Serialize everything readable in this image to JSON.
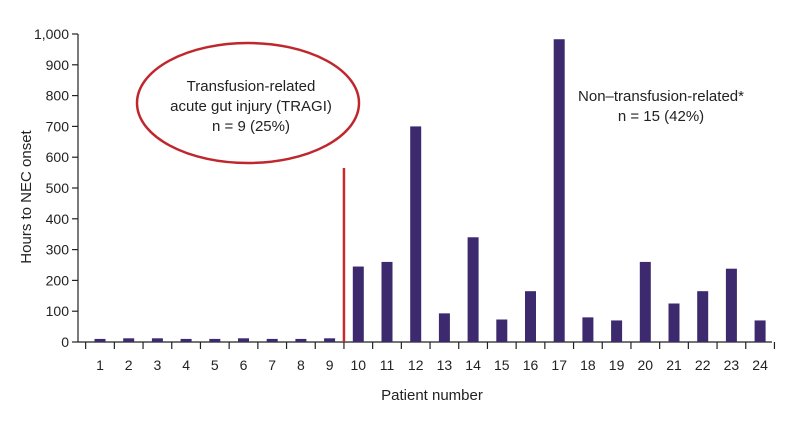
{
  "chart_data": {
    "type": "bar",
    "title": "",
    "xlabel": "Patient number",
    "ylabel": "Hours to NEC onset",
    "ylim": [
      0,
      1000
    ],
    "yticks": [
      0,
      100,
      200,
      300,
      400,
      500,
      600,
      700,
      800,
      900,
      1000
    ],
    "ytick_labels": [
      "0",
      "100",
      "200",
      "300",
      "400",
      "500",
      "600",
      "700",
      "800",
      "900",
      "1,000"
    ],
    "categories": [
      "1",
      "2",
      "3",
      "4",
      "5",
      "6",
      "7",
      "8",
      "9",
      "10",
      "11",
      "12",
      "13",
      "14",
      "15",
      "16",
      "17",
      "18",
      "19",
      "20",
      "21",
      "22",
      "23",
      "24"
    ],
    "values": [
      10,
      12,
      12,
      10,
      10,
      12,
      10,
      10,
      12,
      245,
      260,
      700,
      93,
      340,
      73,
      165,
      983,
      80,
      70,
      260,
      125,
      165,
      238,
      70
    ],
    "grid": false,
    "legend": "none",
    "bar_color": "#3d2a6e",
    "divider": {
      "after_category": "9",
      "color": "#cc2a2a",
      "top_value": 565
    },
    "annotations": {
      "tragi_line1": "Transfusion-related",
      "tragi_line2": "acute gut injury (TRAGI)",
      "tragi_line3": "n = 9 (25%)",
      "tragi_ellipse_color": "#c0272d",
      "non_line1": "Non–transfusion-related*",
      "non_line2": "n = 15 (42%)"
    }
  }
}
